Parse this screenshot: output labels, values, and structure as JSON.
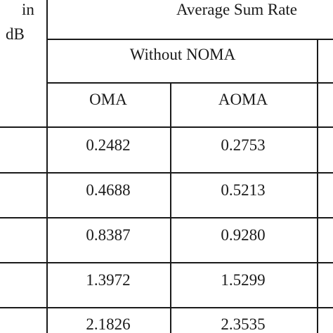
{
  "table": {
    "header": {
      "col1_partial": [
        "in",
        "dB"
      ],
      "group_title": "Average Sum Rate",
      "subgroup_title": "Without NOMA",
      "col_oma": "OMA",
      "col_aoma": "AOMA"
    },
    "rows": [
      {
        "oma": "0.2482",
        "aoma": "0.2753"
      },
      {
        "oma": "0.4688",
        "aoma": "0.5213"
      },
      {
        "oma": "0.8387",
        "aoma": "0.9280"
      },
      {
        "oma": "1.3972",
        "aoma": "1.5299"
      },
      {
        "oma": "2.1826",
        "aoma": "2.3535"
      }
    ]
  }
}
